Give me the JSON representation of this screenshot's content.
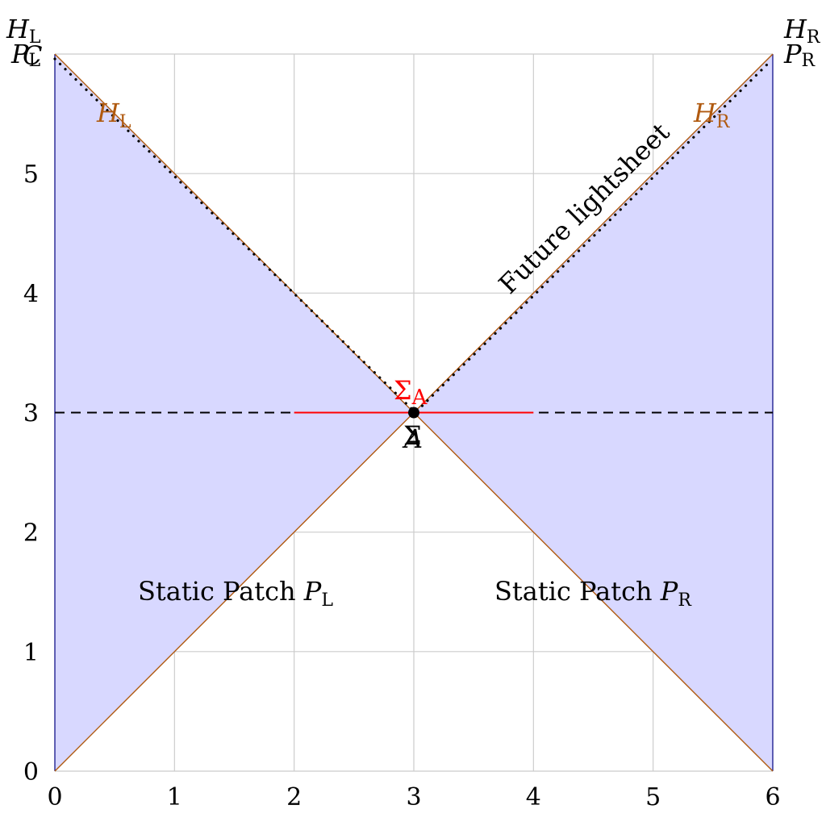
{
  "axes": {
    "x_ticks": [
      "0",
      "1",
      "2",
      "3",
      "4",
      "5",
      "6"
    ],
    "y_ticks": [
      "0",
      "1",
      "2",
      "3",
      "4",
      "5"
    ],
    "xlim": [
      0,
      6
    ],
    "ylim": [
      0,
      6
    ],
    "grid": true
  },
  "colors": {
    "fill": "#d8d8ff",
    "horizon": "#b05a10",
    "sigma": "#ff0000",
    "boundary": "#000080",
    "grid": "#cccccc"
  },
  "labels": {
    "static_left": "Static Patch ",
    "static_left_sym": "P",
    "static_left_sub": "L",
    "static_right": "Static Patch ",
    "static_right_sym": "P",
    "static_right_sub": "R",
    "lightsheet": "Future lightsheet",
    "sigma_a_sym": "Σ",
    "sigma_a_sub": "A",
    "sigma_sym": "Σ",
    "point_a": "A",
    "h_sym": "H",
    "l_sub": "L",
    "r_sub": "R",
    "p_sym": "P",
    "c_left": "C"
  }
}
